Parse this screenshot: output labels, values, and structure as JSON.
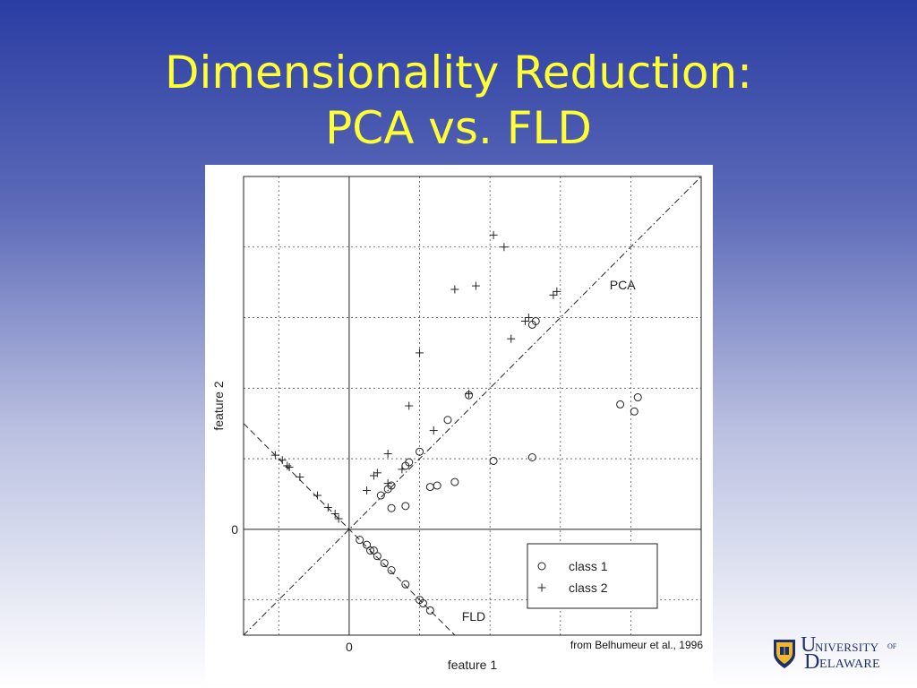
{
  "slide": {
    "title_line1": "Dimensionality Reduction:",
    "title_line2": "PCA vs. FLD"
  },
  "figure": {
    "credit": "from Belhumeur et al., 1996"
  },
  "logo": {
    "word1_initial": "U",
    "word1_rest": "NIVERSITY",
    "word1_of": "OF",
    "word2_initial": "D",
    "word2_rest": "ELAWARE",
    "colors": {
      "navy": "#1d2f6f",
      "gold": "#f2b82c"
    },
    "icon": "university-seal-icon"
  },
  "colors": {
    "title": "#ffff33",
    "background_top": "#2a3da3",
    "background_bottom": "#ffffff"
  },
  "chart_data": {
    "type": "scatter",
    "title": "",
    "xlabel": "feature 1",
    "ylabel": "feature 2",
    "xlim": [
      -1.5,
      5.0
    ],
    "ylim": [
      -1.5,
      5.0
    ],
    "x_ticks": [
      0
    ],
    "y_ticks": [
      0
    ],
    "x_tick_labels": [
      "0"
    ],
    "y_tick_labels": [
      "0"
    ],
    "grid": true,
    "legend_position": "bottom-right",
    "lines": [
      {
        "label": "PCA",
        "style": "dash-dot",
        "slope": 1.0,
        "intercept": 0.0
      },
      {
        "label": "FLD",
        "style": "dashed",
        "slope": -1.0,
        "intercept": 0.0
      }
    ],
    "series": [
      {
        "name": "class 1",
        "marker": "circle",
        "points": [
          [
            0.15,
            -0.15
          ],
          [
            0.25,
            -0.22
          ],
          [
            0.3,
            -0.3
          ],
          [
            0.35,
            -0.3
          ],
          [
            0.4,
            -0.38
          ],
          [
            0.5,
            -0.48
          ],
          [
            0.6,
            -0.58
          ],
          [
            0.8,
            -0.78
          ],
          [
            1.0,
            -1.0
          ],
          [
            1.05,
            -1.05
          ],
          [
            1.15,
            -1.15
          ],
          [
            0.45,
            0.48
          ],
          [
            0.55,
            0.57
          ],
          [
            0.6,
            0.62
          ],
          [
            0.8,
            0.9
          ],
          [
            0.85,
            0.95
          ],
          [
            1.0,
            1.1
          ],
          [
            1.4,
            1.55
          ],
          [
            1.7,
            1.9
          ],
          [
            2.6,
            2.9
          ],
          [
            2.65,
            2.95
          ],
          [
            0.6,
            0.3
          ],
          [
            0.8,
            0.33
          ],
          [
            1.15,
            0.6
          ],
          [
            1.25,
            0.62
          ],
          [
            1.5,
            0.67
          ],
          [
            2.05,
            0.97
          ],
          [
            2.6,
            1.02
          ],
          [
            3.85,
            1.77
          ],
          [
            4.05,
            1.67
          ],
          [
            4.1,
            1.87
          ]
        ]
      },
      {
        "name": "class 2",
        "marker": "plus",
        "points": [
          [
            -1.05,
            1.05
          ],
          [
            -0.95,
            0.98
          ],
          [
            -0.88,
            0.9
          ],
          [
            -0.85,
            0.88
          ],
          [
            -0.7,
            0.74
          ],
          [
            -0.45,
            0.48
          ],
          [
            -0.3,
            0.31
          ],
          [
            -0.2,
            0.22
          ],
          [
            -0.15,
            0.15
          ],
          [
            0.25,
            0.55
          ],
          [
            0.35,
            0.76
          ],
          [
            0.4,
            0.8
          ],
          [
            0.55,
            0.65
          ],
          [
            0.75,
            0.85
          ],
          [
            1.2,
            1.4
          ],
          [
            1.7,
            1.92
          ],
          [
            2.3,
            2.7
          ],
          [
            2.5,
            2.95
          ],
          [
            2.55,
            3.0
          ],
          [
            2.9,
            3.32
          ],
          [
            2.95,
            3.37
          ],
          [
            0.55,
            1.07
          ],
          [
            0.85,
            1.75
          ],
          [
            1.0,
            2.5
          ],
          [
            1.5,
            3.4
          ],
          [
            1.8,
            3.45
          ],
          [
            2.05,
            4.17
          ],
          [
            2.2,
            4.0
          ]
        ]
      }
    ]
  }
}
